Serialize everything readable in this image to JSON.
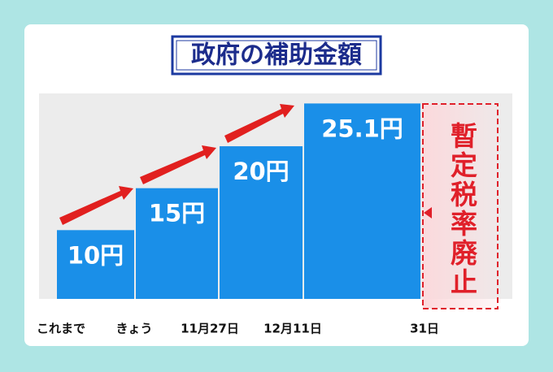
{
  "chart_data": {
    "type": "bar",
    "title": "政府の補助金額",
    "categories": [
      "これまで",
      "きょう",
      "11月27日",
      "12月11日",
      "31日"
    ],
    "values": [
      10,
      15,
      20,
      25.1,
      null
    ],
    "value_labels": [
      "10円",
      "15円",
      "20円",
      "25.1円",
      null
    ],
    "color": "#1a8fe8",
    "ylim": [
      1.8,
      26.3
    ],
    "annotation": "暫定税率廃止",
    "annotation_color": "#e0202a"
  }
}
